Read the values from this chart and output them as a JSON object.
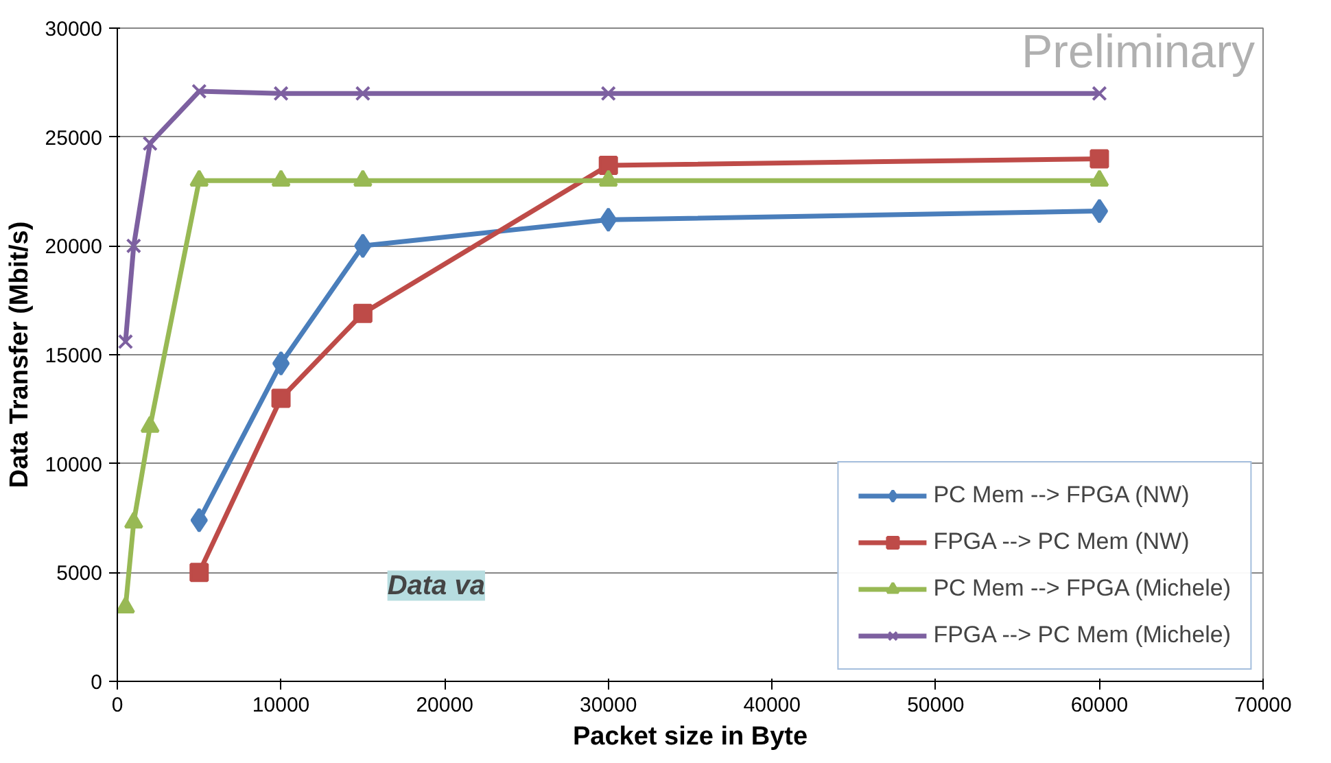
{
  "chart_data": {
    "type": "line",
    "xlabel": "Packet size in Byte",
    "ylabel": "Data Transfer (Mbit/s)",
    "xlim": [
      0,
      70000
    ],
    "xticks": [
      0,
      10000,
      20000,
      30000,
      40000,
      50000,
      60000,
      70000
    ],
    "ylim": [
      0,
      30000
    ],
    "yticks": [
      0,
      5000,
      10000,
      15000,
      20000,
      25000,
      30000
    ],
    "grid": "y",
    "legend": "bottom right",
    "annotations": [
      {
        "text": "Preliminary"
      },
      {
        "text": "Data va"
      }
    ],
    "series": [
      {
        "name": "PC Mem --> FPGA (NW)",
        "color": "#4a7ebb",
        "marker": "diamond",
        "x": [
          5000,
          10000,
          15000,
          30000,
          60000
        ],
        "values": [
          7400,
          14600,
          20000,
          21200,
          21600
        ]
      },
      {
        "name": "FPGA --> PC Mem (NW)",
        "color": "#be4b48",
        "marker": "square",
        "x": [
          5000,
          10000,
          15000,
          30000,
          60000
        ],
        "values": [
          5000,
          13000,
          16900,
          23700,
          24000
        ]
      },
      {
        "name": "PC Mem --> FPGA (Michele)",
        "color": "#98b954",
        "marker": "triangle",
        "x": [
          500,
          1000,
          2000,
          5000,
          10000,
          15000,
          30000,
          60000
        ],
        "values": [
          3400,
          7300,
          11700,
          23000,
          23000,
          23000,
          23000,
          23000
        ]
      },
      {
        "name": "FPGA --> PC Mem (Michele)",
        "color": "#7d60a0",
        "marker": "cross",
        "x": [
          500,
          1000,
          2000,
          5000,
          10000,
          15000,
          30000,
          60000
        ],
        "values": [
          15600,
          20000,
          24700,
          27100,
          27000,
          27000,
          27000,
          27000
        ]
      }
    ]
  }
}
